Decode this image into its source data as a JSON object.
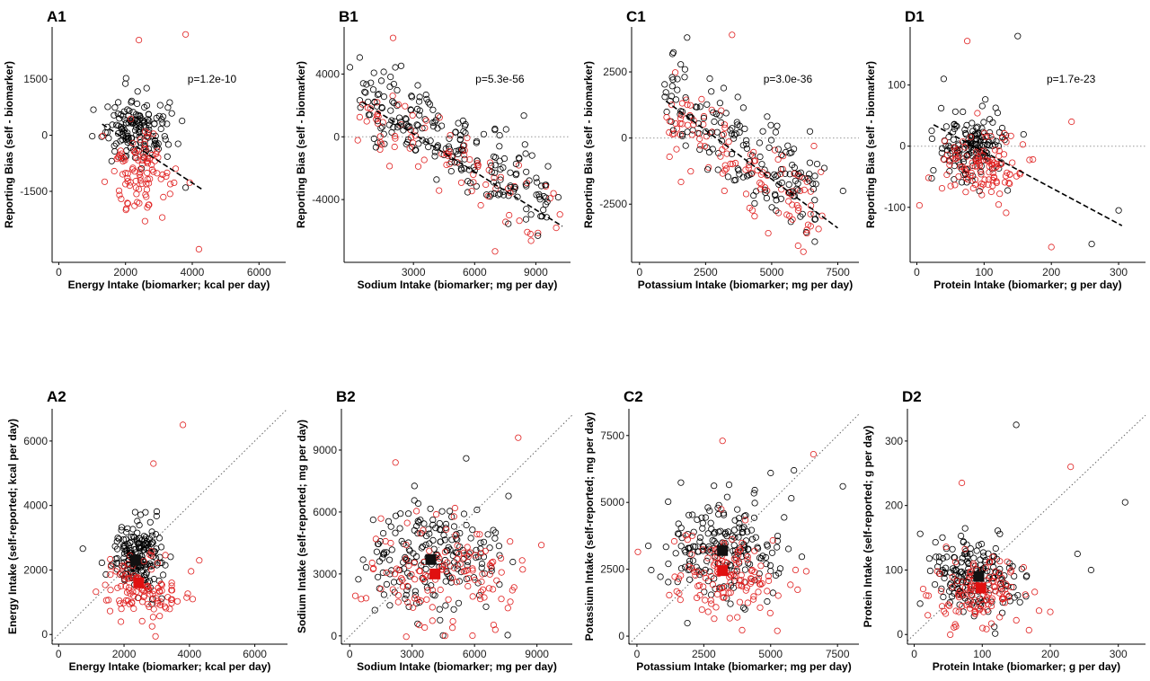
{
  "colors": {
    "accent_black": "#000000",
    "accent_red": "#e02020",
    "mean_black": "#111111",
    "mean_red": "#e01010"
  },
  "chart_data": [
    {
      "id": "A1",
      "type": "scatter",
      "panel_label": "A1",
      "xlabel": "Energy Intake (biomarker; kcal per day)",
      "ylabel": "Reporting Bias (self - biomarker)",
      "annotation": "p=1.2e-10",
      "xlim": [
        -200,
        6800
      ],
      "ylim": [
        -3400,
        2900
      ],
      "xticks": [
        0,
        2000,
        4000,
        6000
      ],
      "xtick_labels": [
        "0",
        "2000",
        "4000",
        "6000"
      ],
      "yticks": [
        -1500,
        0,
        1500
      ],
      "ytick_labels": [
        "-1500",
        "0",
        "1500"
      ],
      "zero_line": false,
      "fit_line": {
        "x": [
          1300,
          4300
        ],
        "y": [
          300,
          -1450
        ]
      },
      "clouds": [
        {
          "color": "black",
          "cx": 2300,
          "cy": 200,
          "sx": 450,
          "sy": 450,
          "n": 150,
          "seed": 11
        },
        {
          "color": "red",
          "cx": 2400,
          "cy": -1000,
          "sx": 500,
          "sy": 550,
          "n": 100,
          "seed": 12
        }
      ],
      "outliers": [
        {
          "color": "red",
          "x": 2400,
          "y": 2550
        },
        {
          "color": "red",
          "x": 3800,
          "y": 2700
        },
        {
          "color": "red",
          "x": 4200,
          "y": -3050
        },
        {
          "color": "red",
          "x": 3100,
          "y": -2200
        },
        {
          "color": "black",
          "x": 3800,
          "y": -1400
        }
      ]
    },
    {
      "id": "B1",
      "type": "scatter",
      "panel_label": "B1",
      "xlabel": "Sodium Intake (biomarker; mg per day)",
      "ylabel": "Reporting Bias (self - biomarker)",
      "annotation": "p=5.3e-56",
      "xlim": [
        -400,
        10700
      ],
      "ylim": [
        -8000,
        7000
      ],
      "xticks": [
        3000,
        6000,
        9000
      ],
      "xtick_labels": [
        "3000",
        "6000",
        "9000"
      ],
      "yticks": [
        -4000,
        0,
        4000
      ],
      "ytick_labels": [
        "-4000",
        "0",
        "4000"
      ],
      "zero_line": true,
      "fit_line": {
        "x": [
          500,
          10300
        ],
        "y": [
          2200,
          -5700
        ]
      },
      "band": {
        "color": "mixed",
        "x0": 700,
        "x1": 9800,
        "y0": 2400,
        "y1": -4400,
        "spread": 1600,
        "n": 300,
        "seed": 21,
        "red_fraction": 0.35
      },
      "outliers": [
        {
          "color": "red",
          "x": 2000,
          "y": 6300
        },
        {
          "color": "red",
          "x": 7000,
          "y": -7300
        },
        {
          "color": "black",
          "x": 9100,
          "y": -6300
        },
        {
          "color": "red",
          "x": 10000,
          "y": -5800
        }
      ]
    },
    {
      "id": "C1",
      "type": "scatter",
      "panel_label": "C1",
      "xlabel": "Potassium Intake (biomarker; mg per day)",
      "ylabel": "Reporting Bias (self - biomarker)",
      "annotation": "p=3.0e-36",
      "xlim": [
        -300,
        8300
      ],
      "ylim": [
        -4700,
        4200
      ],
      "xticks": [
        0,
        2500,
        5000,
        7500
      ],
      "xtick_labels": [
        "0",
        "2500",
        "5000",
        "7500"
      ],
      "yticks": [
        -2500,
        0,
        2500
      ],
      "ytick_labels": [
        "-2500",
        "0",
        "2500"
      ],
      "zero_line": true,
      "fit_line": {
        "x": [
          1000,
          7500
        ],
        "y": [
          1400,
          -3400
        ]
      },
      "band": {
        "color": "mixed",
        "x0": 1000,
        "x1": 7000,
        "y0": 1200,
        "y1": -2600,
        "spread": 1100,
        "n": 280,
        "seed": 31,
        "red_fraction": 0.4
      },
      "outliers": [
        {
          "color": "black",
          "x": 1800,
          "y": 3800
        },
        {
          "color": "red",
          "x": 3500,
          "y": 3900
        },
        {
          "color": "red",
          "x": 6200,
          "y": -4300
        },
        {
          "color": "black",
          "x": 7700,
          "y": -2000
        },
        {
          "color": "red",
          "x": 6600,
          "y": -300
        }
      ]
    },
    {
      "id": "D1",
      "type": "scatter",
      "panel_label": "D1",
      "xlabel": "Protein Intake (biomarker; g per day)",
      "ylabel": "Reporting Bias (self - biomarker)",
      "annotation": "p=1.7e-23",
      "xlim": [
        -10,
        340
      ],
      "ylim": [
        -190,
        195
      ],
      "xticks": [
        0,
        100,
        200,
        300
      ],
      "xtick_labels": [
        "0",
        "100",
        "200",
        "300"
      ],
      "yticks": [
        -100,
        0,
        100
      ],
      "ytick_labels": [
        "-100",
        "0",
        "100"
      ],
      "zero_line": true,
      "fit_line": {
        "x": [
          25,
          305
        ],
        "y": [
          35,
          -130
        ]
      },
      "clouds": [
        {
          "color": "black",
          "cx": 85,
          "cy": 0,
          "sx": 28,
          "sy": 30,
          "n": 150,
          "seed": 41
        },
        {
          "color": "red",
          "cx": 95,
          "cy": -30,
          "sx": 32,
          "sy": 32,
          "n": 110,
          "seed": 42
        }
      ],
      "outliers": [
        {
          "color": "black",
          "x": 150,
          "y": 180
        },
        {
          "color": "red",
          "x": 75,
          "y": 172
        },
        {
          "color": "black",
          "x": 300,
          "y": -105
        },
        {
          "color": "black",
          "x": 260,
          "y": -160
        },
        {
          "color": "red",
          "x": 200,
          "y": -165
        },
        {
          "color": "red",
          "x": 230,
          "y": 40
        },
        {
          "color": "black",
          "x": 40,
          "y": 110
        }
      ]
    },
    {
      "id": "A2",
      "type": "scatter",
      "panel_label": "A2",
      "xlabel": "Energy Intake (biomarker; kcal per day)",
      "ylabel": "Energy Intake (self-reported; kcal per day)",
      "xlim": [
        -200,
        7000
      ],
      "ylim": [
        -300,
        7000
      ],
      "xticks": [
        0,
        2000,
        4000,
        6000
      ],
      "xtick_labels": [
        "0",
        "2000",
        "4000",
        "6000"
      ],
      "yticks": [
        0,
        2000,
        4000,
        6000
      ],
      "ytick_labels": [
        "0",
        "2000",
        "4000",
        "6000"
      ],
      "identity_line": true,
      "clouds": [
        {
          "color": "black",
          "cx": 2400,
          "cy": 2400,
          "sx": 400,
          "sy": 550,
          "n": 180,
          "seed": 51
        },
        {
          "color": "red",
          "cx": 2500,
          "cy": 1400,
          "sx": 600,
          "sy": 500,
          "n": 110,
          "seed": 52
        }
      ],
      "outliers": [
        {
          "color": "red",
          "x": 3800,
          "y": 6500
        },
        {
          "color": "red",
          "x": 2900,
          "y": 5300
        },
        {
          "color": "red",
          "x": 4300,
          "y": 2300
        },
        {
          "color": "red",
          "x": 4100,
          "y": 1100
        }
      ],
      "means": [
        {
          "color": "black",
          "x": 2350,
          "y": 2300
        },
        {
          "color": "red",
          "x": 2450,
          "y": 1600
        }
      ]
    },
    {
      "id": "B2",
      "type": "scatter",
      "panel_label": "B2",
      "xlabel": "Sodium Intake (biomarker; mg per day)",
      "ylabel": "Sodium Intake (self-reported; mg per day)",
      "xlim": [
        -400,
        10700
      ],
      "ylim": [
        -400,
        11000
      ],
      "xticks": [
        0,
        3000,
        6000,
        9000
      ],
      "xtick_labels": [
        "0",
        "3000",
        "6000",
        "9000"
      ],
      "yticks": [
        0,
        3000,
        6000,
        9000
      ],
      "ytick_labels": [
        "0",
        "3000",
        "6000",
        "9000"
      ],
      "identity_line": true,
      "clouds": [
        {
          "color": "black",
          "cx": 4000,
          "cy": 3800,
          "sx": 1800,
          "sy": 1300,
          "n": 190,
          "seed": 61
        },
        {
          "color": "red",
          "cx": 4300,
          "cy": 3000,
          "sx": 2100,
          "sy": 1300,
          "n": 130,
          "seed": 62
        }
      ],
      "outliers": [
        {
          "color": "red",
          "x": 2200,
          "y": 8400
        },
        {
          "color": "red",
          "x": 8100,
          "y": 9600
        },
        {
          "color": "black",
          "x": 5600,
          "y": 8600
        },
        {
          "color": "red",
          "x": 7000,
          "y": 300
        }
      ],
      "means": [
        {
          "color": "black",
          "x": 3900,
          "y": 3700
        },
        {
          "color": "red",
          "x": 4100,
          "y": 3000
        }
      ]
    },
    {
      "id": "C2",
      "type": "scatter",
      "panel_label": "C2",
      "xlabel": "Potassium Intake (biomarker; mg per day)",
      "ylabel": "Potassium Intake (self-reported; mg per day)",
      "xlim": [
        -300,
        8300
      ],
      "ylim": [
        -300,
        8500
      ],
      "xticks": [
        0,
        2500,
        5000,
        7500
      ],
      "xtick_labels": [
        "0",
        "2500",
        "5000",
        "7500"
      ],
      "yticks": [
        0,
        2500,
        5000,
        7500
      ],
      "ytick_labels": [
        "0",
        "2500",
        "5000",
        "7500"
      ],
      "identity_line": true,
      "clouds": [
        {
          "color": "black",
          "cx": 3300,
          "cy": 3300,
          "sx": 1100,
          "sy": 900,
          "n": 190,
          "seed": 71
        },
        {
          "color": "red",
          "cx": 3300,
          "cy": 2300,
          "sx": 1200,
          "sy": 800,
          "n": 130,
          "seed": 72
        }
      ],
      "outliers": [
        {
          "color": "red",
          "x": 3200,
          "y": 7300
        },
        {
          "color": "red",
          "x": 6600,
          "y": 6800
        },
        {
          "color": "black",
          "x": 7700,
          "y": 5600
        },
        {
          "color": "black",
          "x": 5000,
          "y": 6100
        }
      ],
      "means": [
        {
          "color": "black",
          "x": 3200,
          "y": 3200
        },
        {
          "color": "red",
          "x": 3200,
          "y": 2450
        }
      ]
    },
    {
      "id": "D2",
      "type": "scatter",
      "panel_label": "D2",
      "xlabel": "Protein Intake (biomarker; g per day)",
      "ylabel": "Protein Intake (self-reported; g per day)",
      "xlim": [
        -10,
        340
      ],
      "ylim": [
        -15,
        350
      ],
      "xticks": [
        0,
        100,
        200,
        300
      ],
      "xtick_labels": [
        "0",
        "100",
        "200",
        "300"
      ],
      "yticks": [
        0,
        100,
        200,
        300
      ],
      "ytick_labels": [
        "0",
        "100",
        "200",
        "300"
      ],
      "identity_line": true,
      "clouds": [
        {
          "color": "black",
          "cx": 90,
          "cy": 90,
          "sx": 30,
          "sy": 30,
          "n": 180,
          "seed": 81
        },
        {
          "color": "red",
          "cx": 92,
          "cy": 65,
          "sx": 32,
          "sy": 25,
          "n": 120,
          "seed": 82
        }
      ],
      "outliers": [
        {
          "color": "black",
          "x": 150,
          "y": 325
        },
        {
          "color": "red",
          "x": 70,
          "y": 235
        },
        {
          "color": "red",
          "x": 230,
          "y": 260
        },
        {
          "color": "black",
          "x": 310,
          "y": 205
        },
        {
          "color": "black",
          "x": 260,
          "y": 100
        },
        {
          "color": "black",
          "x": 240,
          "y": 125
        },
        {
          "color": "red",
          "x": 200,
          "y": 35
        }
      ],
      "means": [
        {
          "color": "black",
          "x": 95,
          "y": 90
        },
        {
          "color": "red",
          "x": 98,
          "y": 72
        }
      ]
    }
  ]
}
